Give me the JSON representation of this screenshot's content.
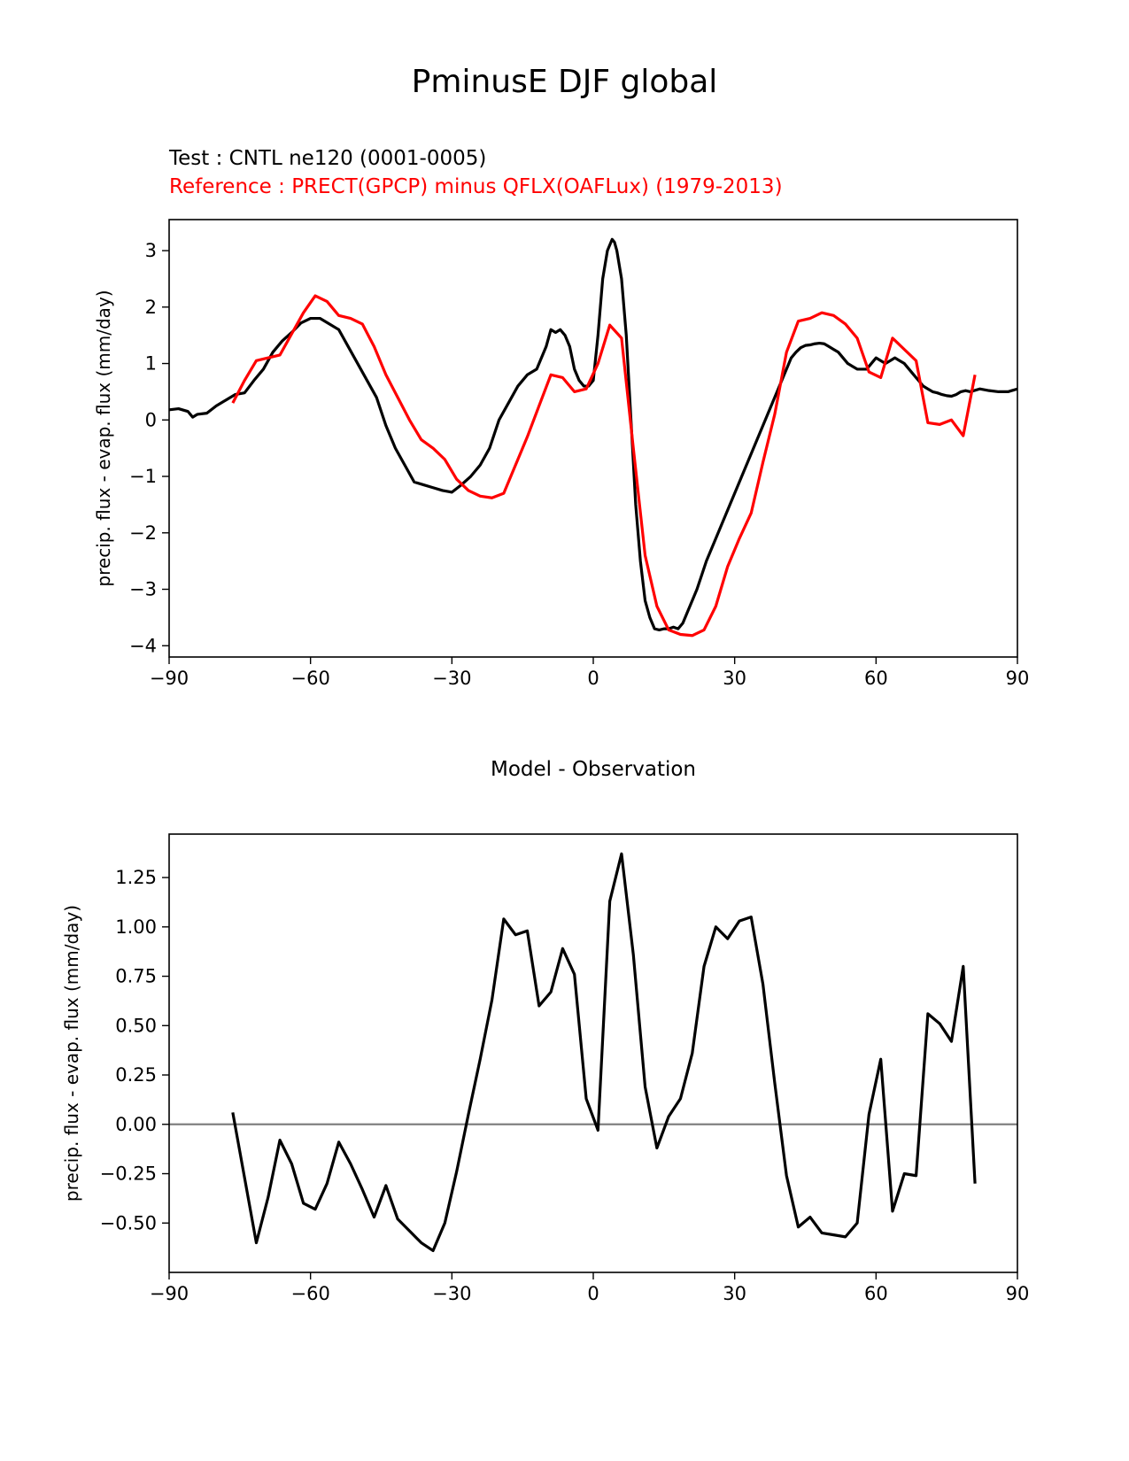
{
  "figure": {
    "suptitle": "PminusE DJF global",
    "test_label": "Test : CNTL ne120 (0001-0005)",
    "reference_label": "Reference : PRECT(GPCP) minus QFLX(OAFLux) (1979-2013)",
    "colors": {
      "test": "#000000",
      "reference": "#ff0000",
      "zero_line": "#808080"
    }
  },
  "chart_data": [
    {
      "type": "line",
      "title": "",
      "xlabel": "",
      "ylabel": "precip. flux - evap. flux (mm/day)",
      "xlim": [
        -90,
        90
      ],
      "ylim": [
        -4.2,
        3.55
      ],
      "xticks": [
        -90,
        -60,
        -30,
        0,
        30,
        60,
        90
      ],
      "xtick_labels": [
        "−90",
        "−60",
        "−30",
        "0",
        "30",
        "60",
        "90"
      ],
      "yticks": [
        -4,
        -3,
        -2,
        -1,
        0,
        1,
        2,
        3
      ],
      "ytick_labels": [
        "−4",
        "−3",
        "−2",
        "−1",
        "0",
        "1",
        "2",
        "3"
      ],
      "series": [
        {
          "name": "Test : CNTL ne120 (0001-0005)",
          "color": "#000000",
          "x": [
            -90,
            -88,
            -86,
            -85,
            -84,
            -82,
            -80,
            -78,
            -76,
            -74,
            -72,
            -70,
            -68,
            -66,
            -64,
            -62,
            -60,
            -58,
            -56,
            -54,
            -52,
            -50,
            -48,
            -46,
            -44,
            -42,
            -40,
            -38,
            -36,
            -34,
            -32,
            -30,
            -28,
            -26,
            -24,
            -22,
            -20,
            -18,
            -16,
            -14,
            -12,
            -10,
            -9,
            -8,
            -7,
            -6,
            -5,
            -4,
            -3,
            -2,
            -1,
            0,
            1,
            2,
            3,
            4,
            4.5,
            5,
            6,
            7,
            8,
            9,
            10,
            11,
            12,
            13,
            14,
            15,
            16,
            17,
            18,
            19,
            20,
            21,
            22,
            23,
            24,
            25,
            26,
            27,
            28,
            29,
            30,
            31,
            32,
            33,
            34,
            35,
            36,
            37,
            38,
            39,
            40,
            41,
            42,
            43,
            44,
            45,
            46,
            47,
            48,
            49,
            50,
            51,
            52,
            53,
            54,
            55,
            56,
            57,
            58,
            59,
            60,
            61,
            62,
            63,
            64,
            65,
            66,
            67,
            68,
            69,
            70,
            71,
            72,
            73,
            74,
            75,
            76,
            77,
            78,
            79,
            80,
            82,
            84,
            86,
            88,
            90
          ],
          "y": [
            0.18,
            0.2,
            0.15,
            0.05,
            0.1,
            0.12,
            0.25,
            0.35,
            0.45,
            0.48,
            0.7,
            0.9,
            1.2,
            1.4,
            1.55,
            1.72,
            1.8,
            1.8,
            1.7,
            1.6,
            1.3,
            1.0,
            0.7,
            0.4,
            -0.1,
            -0.5,
            -0.8,
            -1.1,
            -1.15,
            -1.2,
            -1.25,
            -1.28,
            -1.15,
            -1.0,
            -0.8,
            -0.5,
            0.0,
            0.3,
            0.6,
            0.8,
            0.9,
            1.3,
            1.6,
            1.55,
            1.6,
            1.5,
            1.3,
            0.9,
            0.7,
            0.6,
            0.6,
            0.7,
            1.5,
            2.5,
            3.0,
            3.2,
            3.15,
            3.0,
            2.5,
            1.5,
            0.0,
            -1.5,
            -2.5,
            -3.2,
            -3.5,
            -3.7,
            -3.72,
            -3.7,
            -3.7,
            -3.67,
            -3.7,
            -3.6,
            -3.4,
            -3.2,
            -3.0,
            -2.75,
            -2.5,
            -2.3,
            -2.1,
            -1.9,
            -1.7,
            -1.5,
            -1.3,
            -1.1,
            -0.9,
            -0.7,
            -0.5,
            -0.3,
            -0.1,
            0.1,
            0.3,
            0.5,
            0.7,
            0.9,
            1.1,
            1.2,
            1.28,
            1.32,
            1.33,
            1.35,
            1.36,
            1.35,
            1.3,
            1.25,
            1.2,
            1.1,
            1.0,
            0.95,
            0.9,
            0.9,
            0.9,
            1.0,
            1.1,
            1.05,
            1.0,
            1.05,
            1.1,
            1.05,
            1.0,
            0.9,
            0.8,
            0.7,
            0.6,
            0.55,
            0.5,
            0.48,
            0.45,
            0.43,
            0.42,
            0.45,
            0.5,
            0.52,
            0.5,
            0.55,
            0.52,
            0.5,
            0.5,
            0.55
          ]
        },
        {
          "name": "Reference : PRECT(GPCP) minus QFLX(OAFLux) (1979-2013)",
          "color": "#ff0000",
          "x": [
            -76.5,
            -74,
            -71.5,
            -66.5,
            -61.5,
            -59,
            -56.5,
            -54,
            -51.5,
            -49,
            -46.5,
            -44,
            -41.5,
            -39,
            -36.5,
            -34,
            -31.5,
            -29,
            -26.5,
            -24,
            -21.5,
            -19,
            -16.5,
            -14,
            -11.5,
            -9,
            -6.5,
            -4,
            -1.5,
            1,
            3.5,
            6,
            8.5,
            11,
            13.5,
            16,
            18.5,
            21,
            23.5,
            26,
            28.5,
            31,
            33.5,
            36,
            38.5,
            41,
            43.5,
            46,
            48.5,
            51,
            53.5,
            56,
            58.5,
            61,
            63.5,
            66,
            68.5,
            71,
            73.5,
            76,
            78.5,
            81
          ],
          "y": [
            0.3,
            0.7,
            1.05,
            1.15,
            1.9,
            2.2,
            2.1,
            1.85,
            1.8,
            1.7,
            1.3,
            0.8,
            0.4,
            0.0,
            -0.35,
            -0.5,
            -0.7,
            -1.05,
            -1.25,
            -1.35,
            -1.38,
            -1.3,
            -0.8,
            -0.3,
            0.25,
            0.8,
            0.75,
            0.5,
            0.55,
            1.0,
            1.68,
            1.45,
            -0.5,
            -2.4,
            -3.3,
            -3.72,
            -3.8,
            -3.82,
            -3.72,
            -3.3,
            -2.6,
            -2.1,
            -1.65,
            -0.75,
            0.1,
            1.2,
            1.75,
            1.8,
            1.9,
            1.85,
            1.7,
            1.45,
            0.85,
            0.75,
            1.45,
            1.25,
            1.05,
            -0.05,
            -0.08,
            0.0,
            -0.28,
            0.8
          ]
        }
      ]
    },
    {
      "type": "line",
      "title": "Model - Observation",
      "xlabel": "",
      "ylabel": "precip. flux - evap. flux (mm/day)",
      "xlim": [
        -90,
        90
      ],
      "ylim": [
        -0.75,
        1.47
      ],
      "xticks": [
        -90,
        -60,
        -30,
        0,
        30,
        60,
        90
      ],
      "xtick_labels": [
        "−90",
        "−60",
        "−30",
        "0",
        "30",
        "60",
        "90"
      ],
      "yticks": [
        -0.5,
        -0.25,
        0,
        0.25,
        0.5,
        0.75,
        1.0,
        1.25
      ],
      "ytick_labels": [
        "−0.50",
        "−0.25",
        "0.00",
        "0.25",
        "0.50",
        "0.75",
        "1.00",
        "1.25"
      ],
      "reference_line": 0,
      "series": [
        {
          "name": "Model - Observation",
          "color": "#000000",
          "x": [
            -76.5,
            -74,
            -71.5,
            -69,
            -66.5,
            -64,
            -61.5,
            -59,
            -56.5,
            -54,
            -51.5,
            -49,
            -46.5,
            -44,
            -41.5,
            -39,
            -36.5,
            -34,
            -31.5,
            -29,
            -26.5,
            -24,
            -21.5,
            -19,
            -16.5,
            -14,
            -11.5,
            -9,
            -6.5,
            -4,
            -1.5,
            1,
            3.5,
            6,
            8.5,
            11,
            13.5,
            16,
            18.5,
            21,
            23.5,
            26,
            28.5,
            31,
            33.5,
            36,
            38.5,
            41,
            43.5,
            46,
            48.5,
            51,
            53.5,
            56,
            58.5,
            61,
            63.5,
            66,
            68.5,
            71,
            73.5,
            76,
            78.5,
            81
          ],
          "y": [
            0.06,
            -0.27,
            -0.6,
            -0.37,
            -0.08,
            -0.2,
            -0.4,
            -0.43,
            -0.3,
            -0.09,
            -0.2,
            -0.33,
            -0.47,
            -0.31,
            -0.48,
            -0.54,
            -0.6,
            -0.64,
            -0.5,
            -0.24,
            0.05,
            0.33,
            0.63,
            1.04,
            0.96,
            0.98,
            0.6,
            0.67,
            0.89,
            0.76,
            0.13,
            -0.03,
            1.13,
            1.37,
            0.86,
            0.19,
            -0.12,
            0.04,
            0.13,
            0.36,
            0.8,
            1.0,
            0.94,
            1.03,
            1.05,
            0.71,
            0.21,
            -0.26,
            -0.52,
            -0.47,
            -0.55,
            -0.56,
            -0.57,
            -0.5,
            0.05,
            0.33,
            -0.44,
            -0.25,
            -0.26,
            0.56,
            0.51,
            0.42,
            0.8,
            -0.3
          ]
        }
      ]
    }
  ]
}
